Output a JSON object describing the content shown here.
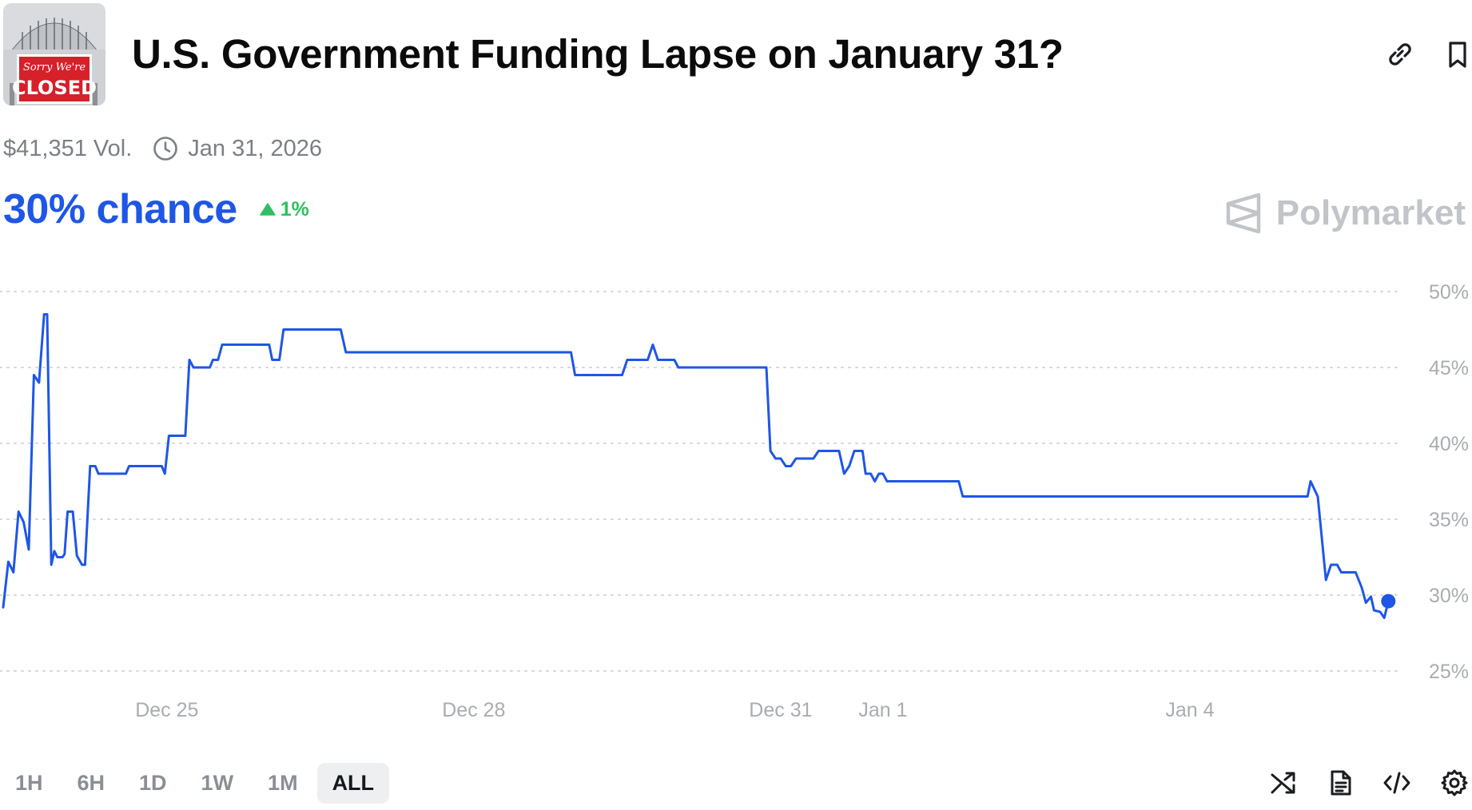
{
  "market": {
    "title": "U.S. Government Funding Lapse on January 31?",
    "thumbnail": {
      "sign_top": "Sorry We're",
      "sign_main": "CLOSED"
    },
    "volume": "$41,351 Vol.",
    "end_date": "Jan 31, 2026",
    "chance": "30% chance",
    "change": "1%",
    "change_direction": "up",
    "brand": "Polymarket"
  },
  "header": {
    "link_icon": "link-icon",
    "bookmark_icon": "bookmark-icon"
  },
  "colors": {
    "line": "#1f56e6",
    "up": "#2fbf61",
    "grid": "#d5d7db",
    "axis_text": "#a9acb2"
  },
  "timeframes": [
    {
      "label": "1H",
      "active": false
    },
    {
      "label": "6H",
      "active": false
    },
    {
      "label": "1D",
      "active": false
    },
    {
      "label": "1W",
      "active": false
    },
    {
      "label": "1M",
      "active": false
    },
    {
      "label": "ALL",
      "active": true
    }
  ],
  "toolbar": [
    "shuffle-icon",
    "document-icon",
    "code-icon",
    "settings-icon"
  ],
  "chart_data": {
    "type": "line",
    "y_ticks": [
      "50%",
      "45%",
      "40%",
      "35%",
      "30%",
      "25%"
    ],
    "y_tick_values": [
      50,
      45,
      40,
      35,
      30,
      25
    ],
    "ylim": [
      25,
      50
    ],
    "x_tick_labels": [
      "Dec 25",
      "Dec 28",
      "Dec 31",
      "Jan 1",
      "Jan 4"
    ],
    "x_tick_values": [
      2.0,
      5.0,
      8.0,
      9.0,
      12.0
    ],
    "xlim": [
      0.4,
      14.0
    ],
    "grid": true,
    "gridline_style": "dotted",
    "series": [
      {
        "points": [
          [
            0.4,
            29.2
          ],
          [
            0.45,
            32.2
          ],
          [
            0.5,
            31.5
          ],
          [
            0.55,
            35.5
          ],
          [
            0.6,
            34.8
          ],
          [
            0.65,
            33.0
          ],
          [
            0.7,
            44.5
          ],
          [
            0.75,
            44.0
          ],
          [
            0.8,
            48.5
          ],
          [
            0.83,
            48.5
          ],
          [
            0.87,
            32.0
          ],
          [
            0.9,
            32.9
          ],
          [
            0.93,
            32.5
          ],
          [
            0.98,
            32.5
          ],
          [
            1.0,
            32.7
          ],
          [
            1.03,
            35.5
          ],
          [
            1.08,
            35.5
          ],
          [
            1.12,
            32.6
          ],
          [
            1.17,
            32.0
          ],
          [
            1.2,
            32.0
          ],
          [
            1.25,
            38.5
          ],
          [
            1.3,
            38.5
          ],
          [
            1.33,
            38.0
          ],
          [
            1.6,
            38.0
          ],
          [
            1.63,
            38.5
          ],
          [
            1.95,
            38.5
          ],
          [
            1.98,
            38.0
          ],
          [
            2.02,
            40.5
          ],
          [
            2.18,
            40.5
          ],
          [
            2.22,
            45.5
          ],
          [
            2.26,
            45.0
          ],
          [
            2.42,
            45.0
          ],
          [
            2.45,
            45.5
          ],
          [
            2.5,
            45.5
          ],
          [
            2.54,
            46.5
          ],
          [
            3.0,
            46.5
          ],
          [
            3.03,
            45.5
          ],
          [
            3.1,
            45.5
          ],
          [
            3.14,
            47.5
          ],
          [
            3.7,
            47.5
          ],
          [
            3.75,
            46.0
          ],
          [
            5.95,
            46.0
          ],
          [
            5.99,
            44.5
          ],
          [
            6.45,
            44.5
          ],
          [
            6.5,
            45.5
          ],
          [
            6.7,
            45.5
          ],
          [
            6.75,
            46.5
          ],
          [
            6.8,
            45.5
          ],
          [
            6.96,
            45.5
          ],
          [
            7.0,
            45.0
          ],
          [
            7.86,
            45.0
          ],
          [
            7.9,
            39.5
          ],
          [
            7.95,
            39.0
          ],
          [
            8.0,
            39.0
          ],
          [
            8.05,
            38.5
          ],
          [
            8.1,
            38.5
          ],
          [
            8.15,
            39.0
          ],
          [
            8.32,
            39.0
          ],
          [
            8.37,
            39.5
          ],
          [
            8.57,
            39.5
          ],
          [
            8.62,
            38.0
          ],
          [
            8.67,
            38.5
          ],
          [
            8.72,
            39.5
          ],
          [
            8.8,
            39.5
          ],
          [
            8.83,
            38.0
          ],
          [
            8.88,
            38.0
          ],
          [
            8.92,
            37.5
          ],
          [
            8.96,
            38.0
          ],
          [
            9.0,
            38.0
          ],
          [
            9.04,
            37.5
          ],
          [
            9.74,
            37.5
          ],
          [
            9.78,
            36.5
          ],
          [
            13.15,
            36.5
          ],
          [
            13.18,
            37.5
          ],
          [
            13.25,
            36.5
          ],
          [
            13.33,
            31.0
          ],
          [
            13.38,
            32.0
          ],
          [
            13.44,
            32.0
          ],
          [
            13.48,
            31.5
          ],
          [
            13.62,
            31.5
          ],
          [
            13.68,
            30.5
          ],
          [
            13.72,
            29.5
          ],
          [
            13.77,
            29.9
          ],
          [
            13.8,
            29.0
          ],
          [
            13.86,
            28.9
          ],
          [
            13.9,
            28.5
          ],
          [
            13.94,
            29.6
          ]
        ],
        "last_value": 29.6
      }
    ]
  }
}
